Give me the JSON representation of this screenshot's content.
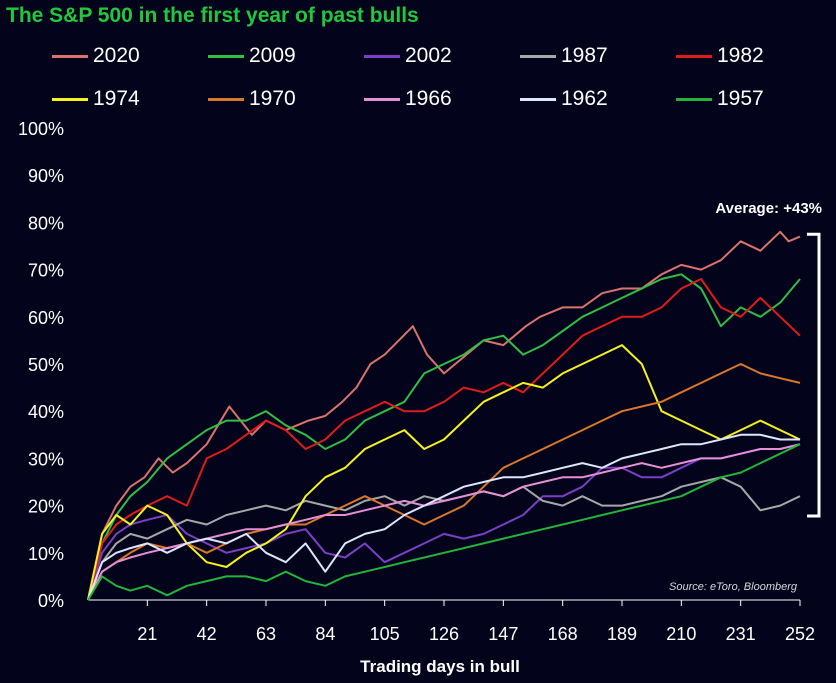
{
  "chart_data": {
    "type": "line",
    "title": "The S&P 500 in the first year of past bulls",
    "xlabel": "Trading days in bull",
    "ylabel": "",
    "x_ticks": [
      21,
      42,
      63,
      84,
      105,
      126,
      147,
      168,
      189,
      210,
      231,
      252
    ],
    "y_ticks": [
      "0%",
      "10%",
      "20%",
      "30%",
      "40%",
      "50%",
      "60%",
      "70%",
      "80%",
      "90%",
      "100%"
    ],
    "xlim": [
      0,
      252
    ],
    "ylim": [
      0,
      100
    ],
    "annotation": "Average: +43%",
    "source": "Source: eToro, Bloomberg",
    "grid": false,
    "legend_placement": "top",
    "series": [
      {
        "name": "2020",
        "color": "#d9736c",
        "x": [
          0,
          5,
          10,
          15,
          20,
          25,
          30,
          35,
          42,
          50,
          58,
          63,
          70,
          78,
          84,
          90,
          95,
          100,
          105,
          110,
          115,
          120,
          126,
          130,
          140,
          147,
          155,
          160,
          168,
          175,
          182,
          189,
          196,
          203,
          210,
          217,
          224,
          231,
          238,
          245,
          248,
          252
        ],
        "values": [
          0,
          14,
          20,
          24,
          26,
          30,
          27,
          29,
          33,
          41,
          35,
          38,
          36,
          38,
          39,
          42,
          45,
          50,
          52,
          55,
          58,
          52,
          48,
          50,
          55,
          54,
          58,
          60,
          62,
          62,
          65,
          66,
          66,
          69,
          71,
          70,
          72,
          76,
          74,
          78,
          76,
          77
        ]
      },
      {
        "name": "2009",
        "color": "#2fbf45",
        "x": [
          0,
          5,
          10,
          15,
          21,
          28,
          35,
          42,
          49,
          56,
          63,
          70,
          77,
          84,
          91,
          98,
          105,
          112,
          119,
          126,
          133,
          140,
          147,
          154,
          161,
          168,
          175,
          182,
          189,
          196,
          203,
          210,
          217,
          224,
          231,
          238,
          245,
          252
        ],
        "values": [
          0,
          12,
          18,
          22,
          25,
          30,
          33,
          36,
          38,
          38,
          40,
          37,
          35,
          32,
          34,
          38,
          40,
          42,
          48,
          50,
          52,
          55,
          56,
          52,
          54,
          57,
          60,
          62,
          64,
          66,
          68,
          69,
          66,
          58,
          62,
          60,
          63,
          68
        ]
      },
      {
        "name": "2002",
        "color": "#7a3fc6",
        "x": [
          0,
          5,
          10,
          15,
          21,
          28,
          35,
          42,
          49,
          56,
          63,
          70,
          77,
          84,
          91,
          98,
          105,
          112,
          119,
          126,
          133,
          140,
          147,
          154,
          161,
          168,
          175,
          182,
          189,
          196,
          203,
          210,
          217,
          224,
          231,
          238,
          245,
          252
        ],
        "values": [
          0,
          10,
          14,
          16,
          17,
          18,
          14,
          12,
          10,
          11,
          12,
          14,
          15,
          10,
          9,
          12,
          8,
          10,
          12,
          14,
          13,
          14,
          16,
          18,
          22,
          22,
          24,
          28,
          28,
          26,
          26,
          28,
          30,
          30,
          31,
          32,
          32,
          33
        ]
      },
      {
        "name": "1987",
        "color": "#a7a7a7",
        "x": [
          0,
          5,
          10,
          15,
          21,
          28,
          35,
          42,
          49,
          56,
          63,
          70,
          77,
          84,
          91,
          98,
          105,
          112,
          119,
          126,
          133,
          140,
          147,
          154,
          161,
          168,
          175,
          182,
          189,
          196,
          203,
          210,
          217,
          224,
          231,
          238,
          245,
          252
        ],
        "values": [
          0,
          8,
          12,
          14,
          13,
          15,
          17,
          16,
          18,
          19,
          20,
          19,
          21,
          20,
          19,
          21,
          22,
          20,
          22,
          21,
          22,
          23,
          22,
          24,
          21,
          20,
          22,
          20,
          20,
          21,
          22,
          24,
          25,
          26,
          24,
          19,
          20,
          22
        ]
      },
      {
        "name": "1982",
        "color": "#e01b1b",
        "x": [
          0,
          5,
          10,
          15,
          21,
          28,
          35,
          42,
          49,
          56,
          63,
          70,
          77,
          84,
          91,
          98,
          105,
          112,
          119,
          126,
          133,
          140,
          147,
          154,
          161,
          168,
          175,
          182,
          189,
          196,
          203,
          210,
          217,
          224,
          231,
          238,
          245,
          252
        ],
        "values": [
          0,
          12,
          16,
          18,
          20,
          22,
          20,
          30,
          32,
          35,
          38,
          36,
          32,
          34,
          38,
          40,
          42,
          40,
          40,
          42,
          45,
          44,
          46,
          44,
          48,
          52,
          56,
          58,
          60,
          60,
          62,
          66,
          68,
          62,
          60,
          64,
          60,
          56
        ]
      },
      {
        "name": "1974",
        "color": "#f6f21b",
        "x": [
          0,
          5,
          10,
          15,
          21,
          28,
          35,
          42,
          49,
          56,
          63,
          70,
          77,
          84,
          91,
          98,
          105,
          112,
          119,
          126,
          133,
          140,
          147,
          154,
          161,
          168,
          175,
          182,
          189,
          196,
          203,
          210,
          217,
          224,
          231,
          238,
          245,
          252
        ],
        "values": [
          0,
          14,
          18,
          16,
          20,
          18,
          12,
          8,
          7,
          10,
          12,
          15,
          22,
          26,
          28,
          32,
          34,
          36,
          32,
          34,
          38,
          42,
          44,
          46,
          45,
          48,
          50,
          52,
          54,
          50,
          40,
          38,
          36,
          34,
          36,
          38,
          36,
          34
        ]
      },
      {
        "name": "1970",
        "color": "#d9772b",
        "x": [
          0,
          5,
          10,
          15,
          21,
          28,
          35,
          42,
          49,
          56,
          63,
          70,
          77,
          84,
          91,
          98,
          105,
          112,
          119,
          126,
          133,
          140,
          147,
          154,
          161,
          168,
          175,
          182,
          189,
          196,
          203,
          210,
          217,
          224,
          231,
          238,
          245,
          252
        ],
        "values": [
          0,
          6,
          8,
          10,
          12,
          11,
          12,
          10,
          12,
          14,
          15,
          16,
          16,
          18,
          20,
          22,
          20,
          18,
          16,
          18,
          20,
          24,
          28,
          30,
          32,
          34,
          36,
          38,
          40,
          41,
          42,
          44,
          46,
          48,
          50,
          48,
          47,
          46
        ]
      },
      {
        "name": "1966",
        "color": "#e58fd6",
        "x": [
          0,
          5,
          10,
          15,
          21,
          28,
          35,
          42,
          49,
          56,
          63,
          70,
          77,
          84,
          91,
          98,
          105,
          112,
          119,
          126,
          133,
          140,
          147,
          154,
          161,
          168,
          175,
          182,
          189,
          196,
          203,
          210,
          217,
          224,
          231,
          238,
          245,
          252
        ],
        "values": [
          0,
          6,
          8,
          9,
          10,
          11,
          12,
          13,
          14,
          15,
          15,
          16,
          17,
          18,
          18,
          19,
          20,
          21,
          20,
          21,
          22,
          23,
          22,
          24,
          25,
          26,
          26,
          27,
          28,
          29,
          28,
          29,
          30,
          30,
          31,
          32,
          32,
          33
        ]
      },
      {
        "name": "1962",
        "color": "#dce6ff",
        "x": [
          0,
          5,
          10,
          15,
          21,
          28,
          35,
          42,
          49,
          56,
          63,
          70,
          77,
          84,
          91,
          98,
          105,
          112,
          119,
          126,
          133,
          140,
          147,
          154,
          161,
          168,
          175,
          182,
          189,
          196,
          203,
          210,
          217,
          224,
          231,
          238,
          245,
          252
        ],
        "values": [
          0,
          8,
          10,
          11,
          12,
          10,
          12,
          13,
          12,
          14,
          10,
          8,
          12,
          6,
          12,
          14,
          15,
          18,
          20,
          22,
          24,
          25,
          26,
          26,
          27,
          28,
          29,
          28,
          30,
          31,
          32,
          33,
          33,
          34,
          35,
          35,
          34,
          34
        ]
      },
      {
        "name": "1957",
        "color": "#22b43a",
        "x": [
          0,
          5,
          10,
          15,
          21,
          28,
          35,
          42,
          49,
          56,
          63,
          70,
          77,
          84,
          91,
          98,
          105,
          112,
          119,
          126,
          133,
          140,
          147,
          154,
          161,
          168,
          175,
          182,
          189,
          196,
          203,
          210,
          217,
          224,
          231,
          238,
          245,
          252
        ],
        "values": [
          0,
          5,
          3,
          2,
          3,
          1,
          3,
          4,
          5,
          5,
          4,
          6,
          4,
          3,
          5,
          6,
          7,
          8,
          9,
          10,
          11,
          12,
          13,
          14,
          15,
          16,
          17,
          18,
          19,
          20,
          21,
          22,
          24,
          26,
          27,
          29,
          31,
          33
        ]
      }
    ]
  }
}
